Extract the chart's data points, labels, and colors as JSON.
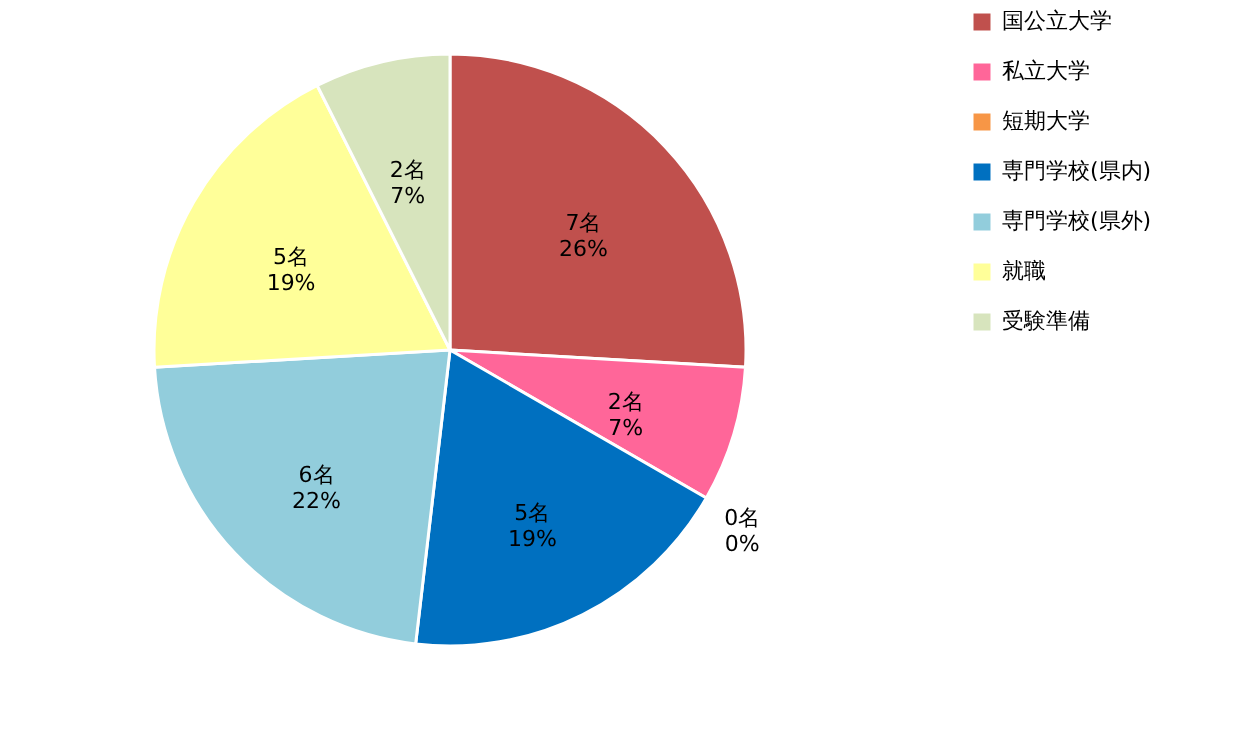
{
  "chart_data": {
    "type": "pie",
    "categories": [
      "国公立大学",
      "私立大学",
      "短期大学",
      "専門学校(県内)",
      "専門学校(県外)",
      "就職",
      "受験準備"
    ],
    "values": [
      7,
      2,
      0,
      5,
      6,
      5,
      2
    ],
    "colors": [
      "#c0504d",
      "#ff6699",
      "#f79646",
      "#0070c0",
      "#92cddc",
      "#ffff99",
      "#d7e4bd"
    ],
    "value_labels": [
      "7名\n26%",
      "2名\n7%",
      "0名\n0%",
      "5名\n19%",
      "6名\n22%",
      "5名\n19%",
      "2名\n7%"
    ],
    "legend": "right"
  }
}
